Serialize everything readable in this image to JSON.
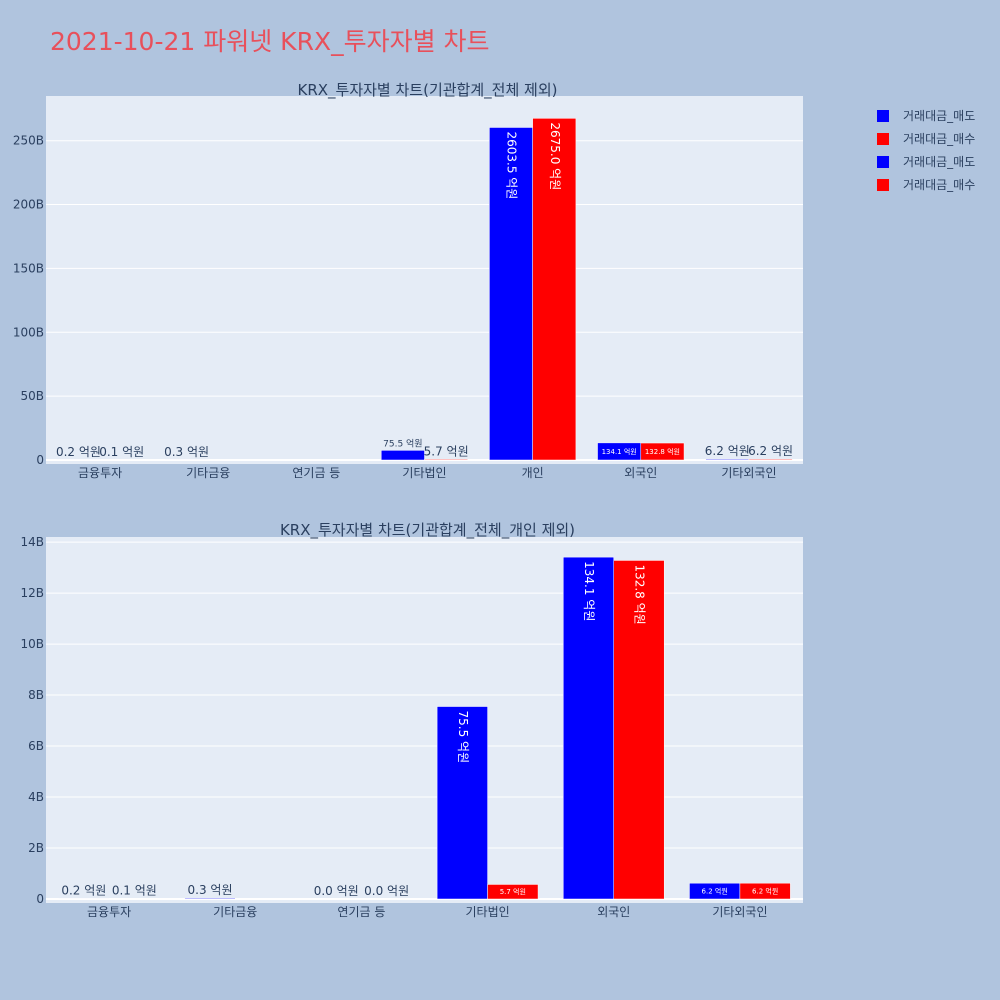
{
  "page": {
    "title": "2021-10-21 파워넷 KRX_투자자별 차트"
  },
  "colors": {
    "sell": "#0000ff",
    "buy": "#ff0000",
    "plot_bg": "#e5ecf6",
    "page_bg": "#b0c4de",
    "title": "#e8505b"
  },
  "legend": {
    "items": [
      {
        "label": "거래대금_매도",
        "color": "#0000ff"
      },
      {
        "label": "거래대금_매수",
        "color": "#ff0000"
      },
      {
        "label": "거래대금_매도",
        "color": "#0000ff"
      },
      {
        "label": "거래대금_매수",
        "color": "#ff0000"
      }
    ]
  },
  "chart_data": [
    {
      "type": "bar",
      "title": "KRX_투자자별 차트(기관합계_전체 제외)",
      "categories": [
        "금융투자",
        "기타금융",
        "연기금 등",
        "기타법인",
        "개인",
        "외국인",
        "기타외국인"
      ],
      "ylim": [
        0,
        285000000000
      ],
      "yticks": [
        0,
        50000000000,
        100000000000,
        150000000000,
        200000000000,
        250000000000
      ],
      "ytick_labels": [
        "0",
        "50B",
        "100B",
        "150B",
        "200B",
        "250B"
      ],
      "grid": true,
      "legend_position": "top-right",
      "series": [
        {
          "name": "거래대금_매도",
          "color": "#0000ff",
          "values": [
            20000000,
            30000000,
            null,
            7550000000,
            260350000000,
            13410000000,
            620000000
          ],
          "labels": [
            "0.2 억원",
            "0.3 억원",
            "",
            "75.5 억원",
            "2603.5 억원",
            "134.1 억원",
            "6.2 억원"
          ]
        },
        {
          "name": "거래대금_매수",
          "color": "#ff0000",
          "values": [
            10000000,
            null,
            null,
            570000000,
            267500000000,
            13280000000,
            620000000
          ],
          "labels": [
            "0.1 억원",
            "",
            "",
            "5.7 억원",
            "2675.0 억원",
            "132.8 억원",
            "6.2 억원"
          ]
        }
      ]
    },
    {
      "type": "bar",
      "title": "KRX_투자자별 차트(기관합계_전체_개인 제외)",
      "categories": [
        "금융투자",
        "기타금융",
        "연기금 등",
        "기타법인",
        "외국인",
        "기타외국인"
      ],
      "ylim": [
        0,
        14200000000
      ],
      "yticks": [
        0,
        2000000000,
        4000000000,
        6000000000,
        8000000000,
        10000000000,
        12000000000,
        14000000000
      ],
      "ytick_labels": [
        "0",
        "2B",
        "4B",
        "6B",
        "8B",
        "10B",
        "12B",
        "14B"
      ],
      "grid": true,
      "series": [
        {
          "name": "거래대금_매도",
          "color": "#0000ff",
          "values": [
            20000000,
            30000000,
            0,
            7550000000,
            13410000000,
            620000000
          ],
          "labels": [
            "0.2 억원",
            "0.3 억원",
            "0.0 억원",
            "75.5 억원",
            "134.1 억원",
            "6.2 억원"
          ]
        },
        {
          "name": "거래대금_매수",
          "color": "#ff0000",
          "values": [
            10000000,
            null,
            0,
            570000000,
            13280000000,
            620000000
          ],
          "labels": [
            "0.1 억원",
            "",
            "0.0 억원",
            "5.7 억원",
            "132.8 억원",
            "6.2 억원"
          ]
        }
      ]
    }
  ]
}
